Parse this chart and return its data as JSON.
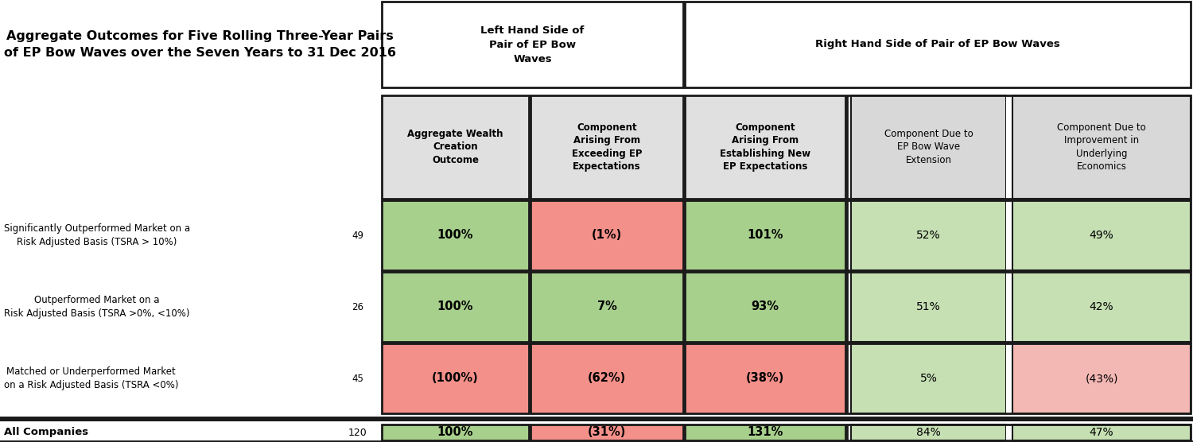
{
  "title_line1": "Aggregate Outcomes for Five Rolling Three-Year Pairs",
  "title_line2": "of EP Bow Waves over the Seven Years to 31 Dec 2016",
  "top_header_left": "Left Hand Side of\nPair of EP Bow\nWaves",
  "top_header_right": "Right Hand Side of Pair of EP Bow Waves",
  "col_headers": [
    "Aggregate Wealth\nCreation\nOutcome",
    "Component\nArising From\nExceeding EP\nExpectations",
    "Component\nArising From\nEstablishing New\nEP Expectations",
    "Component Due to\nEP Bow Wave\nExtension",
    "Component Due to\nImprovement in\nUnderlying\nEconomics"
  ],
  "row_labels": [
    "Significantly Outperformed Market on a\nRisk Adjusted Basis (TSRA > 10%)",
    "Outperformed Market on a\nRisk Adjusted Basis (TSRA >0%, <10%)",
    "Matched or Underperformed Market\non a Risk Adjusted Basis (TSRA <0%)",
    "All Companies"
  ],
  "row_counts": [
    "49",
    "26",
    "45",
    "120"
  ],
  "data": [
    [
      "100%",
      "(1%)",
      "101%",
      "52%",
      "49%"
    ],
    [
      "100%",
      "7%",
      "93%",
      "51%",
      "42%"
    ],
    [
      "(100%)",
      "(62%)",
      "(38%)",
      "5%",
      "(43%)"
    ],
    [
      "100%",
      "(31%)",
      "131%",
      "84%",
      "47%"
    ]
  ],
  "cell_colors": [
    [
      "#a8d08d",
      "#f4908a",
      "#a8d08d",
      "#c6e0b4",
      "#c6e0b4"
    ],
    [
      "#a8d08d",
      "#a8d08d",
      "#a8d08d",
      "#c6e0b4",
      "#c6e0b4"
    ],
    [
      "#f4908a",
      "#f4908a",
      "#f4908a",
      "#c6e0b4",
      "#f4b8b4"
    ],
    [
      "#a8d08d",
      "#f4908a",
      "#a8d08d",
      "#c6e0b4",
      "#c6e0b4"
    ]
  ],
  "header_bg": "#e0e0e0",
  "rhs_header_bg": "#d8d8d8",
  "gap_color": "#ffffff"
}
